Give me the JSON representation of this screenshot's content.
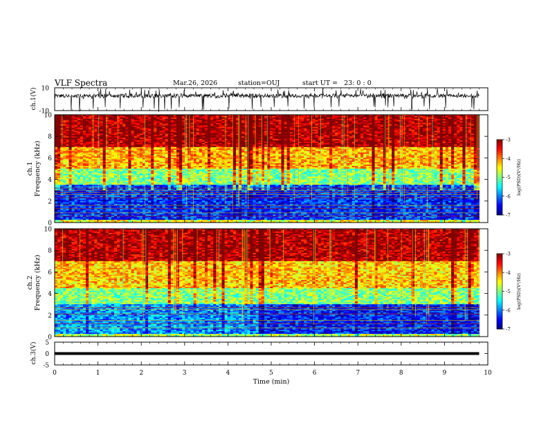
{
  "header": {
    "title": "VLF Spectra",
    "date": "Mar.26, 2026",
    "station": "station=OUJ",
    "start_label": "start  UT =",
    "start_value": "23: 0  : 0"
  },
  "chart_data": [
    {
      "type": "line",
      "panel": "waveform-ch1",
      "ylabel": "ch.1(V)",
      "ylim": [
        -10,
        10
      ],
      "y_ticks": [
        "10",
        "-10"
      ],
      "xlim": [
        0,
        10
      ],
      "baseline": 3,
      "trace_range": [
        1,
        5
      ],
      "spikes": "dense vertical spikes reaching near +10 and -10"
    },
    {
      "type": "heatmap",
      "panel": "spectrogram-ch1",
      "ylabel": "Frequency  (kHz)",
      "channel_label": "ch.1",
      "ylim": [
        0,
        10
      ],
      "y_ticks": [
        "0",
        "2",
        "4",
        "6",
        "8",
        "10"
      ],
      "xlim": [
        0,
        9.8
      ],
      "colorbar": {
        "label": "log(PSD)(V²/Hz)",
        "range": [
          -7,
          -3
        ],
        "ticks": [
          "-3",
          "-4",
          "-5",
          "-6",
          "-7"
        ]
      },
      "bands": [
        {
          "from_khz": 7.0,
          "to_khz": 10.0,
          "log_psd": -3.2
        },
        {
          "from_khz": 5.0,
          "to_khz": 7.0,
          "log_psd": -4.2
        },
        {
          "from_khz": 3.5,
          "to_khz": 5.0,
          "log_psd": -5.0
        },
        {
          "from_khz": 0.3,
          "to_khz": 3.5,
          "log_psd": -6.3
        },
        {
          "from_khz": 0.0,
          "to_khz": 0.3,
          "log_psd": -4.5
        }
      ],
      "lines_khz": [
        3.2,
        3.0,
        2.8,
        2.6,
        2.3,
        1.6,
        1.3,
        0.9,
        0.6
      ]
    },
    {
      "type": "heatmap",
      "panel": "spectrogram-ch2",
      "ylabel": "Frequency  (kHz)",
      "channel_label": "ch.2",
      "ylim": [
        0,
        10
      ],
      "y_ticks": [
        "0",
        "2",
        "4",
        "6",
        "8",
        "10"
      ],
      "xlim": [
        0,
        9.8
      ],
      "colorbar": {
        "label": "log(PSD)(V²/Hz)",
        "range": [
          -7,
          -3
        ],
        "ticks": [
          "-3",
          "-4",
          "-5",
          "-6",
          "-7"
        ]
      },
      "bands": [
        {
          "from_khz": 7.0,
          "to_khz": 10.0,
          "log_psd": -3.2
        },
        {
          "from_khz": 4.5,
          "to_khz": 7.0,
          "log_psd": -4.3
        },
        {
          "from_khz": 3.0,
          "to_khz": 4.5,
          "log_psd": -5.0
        },
        {
          "from_khz": 0.3,
          "to_khz": 3.0,
          "log_psd": -5.9
        },
        {
          "from_khz": 0.0,
          "to_khz": 0.3,
          "log_psd": -4.8
        }
      ],
      "lines_khz": [
        2.7,
        2.5,
        2.1,
        1.5,
        1.2,
        0.8
      ],
      "transition_min": 4.7
    },
    {
      "type": "line",
      "panel": "waveform-ch3",
      "ylabel": "ch.3(V)",
      "ylim": [
        -5,
        5
      ],
      "y_ticks": [
        "5",
        "0",
        "-5"
      ],
      "xlim": [
        0,
        10
      ],
      "x": [
        0,
        9.8
      ],
      "y": [
        0,
        0
      ],
      "xlabel": "Time  (min)",
      "x_ticks": [
        "0",
        "1",
        "2",
        "3",
        "4",
        "5",
        "6",
        "7",
        "8",
        "9",
        "10"
      ]
    }
  ]
}
